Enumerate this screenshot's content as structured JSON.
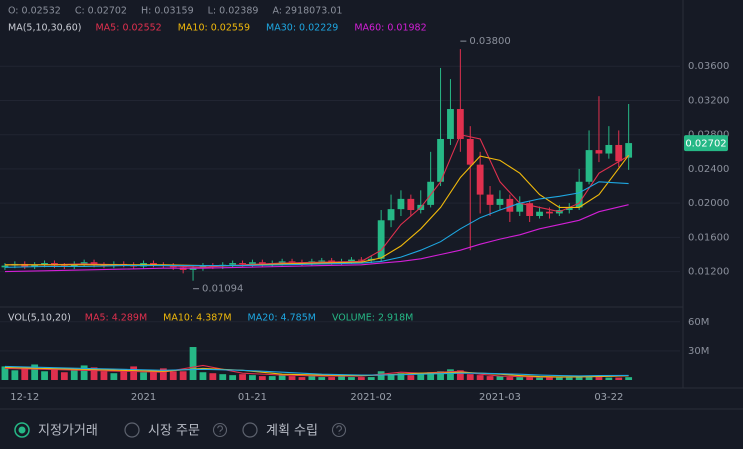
{
  "header": {
    "ohlc": [
      "O: 0.02532",
      "C: 0.02702",
      "H: 0.03159",
      "L: 0.02389",
      "A: 2918073.01"
    ]
  },
  "chart_data": [
    {
      "type": "candlestick",
      "legend_title": "MA(5,10,30,60)",
      "categories": [
        null,
        null,
        "12-12",
        null,
        null,
        null,
        null,
        null,
        null,
        null,
        null,
        null,
        null,
        null,
        "2021",
        null,
        null,
        null,
        null,
        null,
        null,
        null,
        null,
        null,
        null,
        "01-21",
        null,
        null,
        null,
        null,
        null,
        null,
        null,
        null,
        null,
        null,
        null,
        "2021-02",
        null,
        null,
        null,
        null,
        null,
        null,
        null,
        null,
        null,
        null,
        null,
        null,
        "2021-03",
        null,
        null,
        null,
        null,
        null,
        null,
        null,
        null,
        null,
        null,
        "03-22",
        null,
        null
      ],
      "open": [
        0.0125,
        0.0127,
        0.0129,
        0.0126,
        0.0128,
        0.013,
        0.0127,
        0.0126,
        0.0129,
        0.0131,
        0.0128,
        0.0127,
        0.0129,
        0.0128,
        0.0126,
        0.013,
        0.0128,
        0.0127,
        0.0125,
        0.0122,
        0.0124,
        0.0127,
        0.0126,
        0.0128,
        0.013,
        0.0129,
        0.0131,
        0.0129,
        0.013,
        0.0132,
        0.0131,
        0.013,
        0.0132,
        0.0133,
        0.0131,
        0.0132,
        0.0134,
        0.0133,
        0.0135,
        0.018,
        0.0193,
        0.0205,
        0.0192,
        0.0198,
        0.0225,
        0.0275,
        0.031,
        0.0275,
        0.0245,
        0.021,
        0.0198,
        0.0205,
        0.019,
        0.02,
        0.0185,
        0.019,
        0.0188,
        0.0192,
        0.0195,
        0.0225,
        0.0262,
        0.0258,
        0.0268,
        0.02532
      ],
      "high": [
        0.013,
        0.0132,
        0.0132,
        0.0131,
        0.0133,
        0.0133,
        0.013,
        0.0132,
        0.0134,
        0.0134,
        0.0131,
        0.0132,
        0.0132,
        0.0131,
        0.0133,
        0.0133,
        0.0131,
        0.013,
        0.0128,
        0.0127,
        0.013,
        0.013,
        0.0131,
        0.0133,
        0.0133,
        0.0134,
        0.0134,
        0.0133,
        0.0135,
        0.0135,
        0.0134,
        0.0135,
        0.0136,
        0.0136,
        0.0135,
        0.0137,
        0.0137,
        0.0138,
        0.0192,
        0.021,
        0.0215,
        0.021,
        0.0215,
        0.026,
        0.0358,
        0.0345,
        0.038,
        0.029,
        0.026,
        0.022,
        0.0215,
        0.021,
        0.0208,
        0.0203,
        0.0196,
        0.0195,
        0.0198,
        0.02,
        0.024,
        0.0285,
        0.0325,
        0.029,
        0.0285,
        0.03159
      ],
      "low": [
        0.0122,
        0.0124,
        0.0123,
        0.0123,
        0.0125,
        0.0124,
        0.0123,
        0.0123,
        0.0126,
        0.0125,
        0.0124,
        0.0124,
        0.0125,
        0.0123,
        0.0123,
        0.0125,
        0.0124,
        0.0122,
        0.0118,
        0.01094,
        0.0121,
        0.0123,
        0.0123,
        0.0125,
        0.0126,
        0.0126,
        0.0126,
        0.0126,
        0.0127,
        0.0128,
        0.0127,
        0.0127,
        0.0129,
        0.0128,
        0.0128,
        0.0129,
        0.013,
        0.013,
        0.0132,
        0.0172,
        0.0185,
        0.0185,
        0.0188,
        0.0195,
        0.022,
        0.0268,
        0.026,
        0.0145,
        0.0188,
        0.0185,
        0.0192,
        0.0178,
        0.0185,
        0.0178,
        0.0182,
        0.0182,
        0.0185,
        0.0188,
        0.0192,
        0.0222,
        0.0248,
        0.0252,
        0.0242,
        0.02389
      ],
      "close": [
        0.0127,
        0.0129,
        0.0126,
        0.0128,
        0.013,
        0.0127,
        0.0126,
        0.0129,
        0.0131,
        0.0128,
        0.0127,
        0.0129,
        0.0128,
        0.0126,
        0.013,
        0.0128,
        0.0127,
        0.0125,
        0.0122,
        0.0124,
        0.0127,
        0.0126,
        0.0128,
        0.013,
        0.0129,
        0.0131,
        0.0129,
        0.013,
        0.0132,
        0.0131,
        0.013,
        0.0132,
        0.0133,
        0.0131,
        0.0132,
        0.0134,
        0.0133,
        0.0135,
        0.018,
        0.0193,
        0.0205,
        0.0192,
        0.0198,
        0.0225,
        0.0275,
        0.031,
        0.0275,
        0.0245,
        0.021,
        0.0198,
        0.0205,
        0.019,
        0.02,
        0.0185,
        0.019,
        0.0188,
        0.0192,
        0.0195,
        0.0225,
        0.0262,
        0.0258,
        0.0268,
        0.0249,
        0.02702
      ],
      "up_color": "#26b886",
      "down_color": "#e0304e",
      "ylim": [
        0.0081,
        0.0393
      ],
      "yticks": [
        {
          "value": 0.012,
          "label": "0.01200"
        },
        {
          "value": 0.016,
          "label": "0.01600"
        },
        {
          "value": 0.02,
          "label": "0.02000"
        },
        {
          "value": 0.024,
          "label": "0.02400"
        },
        {
          "value": 0.028,
          "label": "0.02800"
        },
        {
          "value": 0.032,
          "label": "0.03200"
        },
        {
          "value": 0.036,
          "label": "0.03600"
        }
      ],
      "grid": true,
      "annotations": [
        {
          "index": 46,
          "text": "0.03800"
        },
        {
          "index": 19,
          "text": "0.01094"
        }
      ],
      "line_x": [
        0,
        4,
        8,
        12,
        16,
        20,
        24,
        28,
        32,
        36,
        38,
        40,
        42,
        44,
        46,
        48,
        50,
        52,
        54,
        56,
        58,
        60,
        63
      ],
      "lines": [
        {
          "name": "MA5: 0.02552",
          "color": "#e0304e",
          "values": [
            0.0128,
            0.0128,
            0.0129,
            0.0128,
            0.0127,
            0.0125,
            0.0128,
            0.013,
            0.0131,
            0.0132,
            0.0145,
            0.0175,
            0.0195,
            0.0225,
            0.028,
            0.0275,
            0.0225,
            0.02,
            0.0195,
            0.019,
            0.02,
            0.0235,
            0.02552
          ]
        },
        {
          "name": "MA10: 0.02559",
          "color": "#f0b90b",
          "values": [
            0.0128,
            0.0128,
            0.0128,
            0.0128,
            0.0128,
            0.0127,
            0.0127,
            0.0129,
            0.013,
            0.0131,
            0.0136,
            0.015,
            0.017,
            0.0195,
            0.023,
            0.0255,
            0.025,
            0.0235,
            0.021,
            0.0195,
            0.0195,
            0.021,
            0.02559
          ]
        },
        {
          "name": "MA30: 0.02229",
          "color": "#1ea7e1",
          "values": [
            0.0125,
            0.0126,
            0.0126,
            0.0127,
            0.0127,
            0.0127,
            0.0127,
            0.0128,
            0.0129,
            0.013,
            0.0132,
            0.0137,
            0.0145,
            0.0155,
            0.017,
            0.0183,
            0.0192,
            0.02,
            0.0205,
            0.0208,
            0.0212,
            0.0225,
            0.02229
          ]
        },
        {
          "name": "MA60: 0.01982",
          "color": "#d21fd6",
          "values": [
            0.012,
            0.0121,
            0.0122,
            0.0123,
            0.0124,
            0.0124,
            0.0125,
            0.0126,
            0.0127,
            0.0128,
            0.013,
            0.0132,
            0.0135,
            0.014,
            0.0145,
            0.0152,
            0.0158,
            0.0163,
            0.017,
            0.0175,
            0.018,
            0.019,
            0.01982
          ]
        }
      ]
    },
    {
      "type": "volume",
      "legend_title": "VOL(5,10,20)",
      "volume_label": "VOLUME: 2.918M",
      "volume_color": "#26b886",
      "values": [
        14000000,
        10000000,
        13000000,
        16000000,
        9000000,
        12000000,
        8000000,
        11000000,
        15000000,
        13000000,
        9000000,
        7000000,
        11000000,
        14000000,
        8000000,
        10000000,
        12000000,
        9000000,
        9000000,
        34000000,
        8000000,
        7000000,
        6000000,
        5000000,
        6000000,
        5000000,
        4000000,
        4000000,
        5000000,
        4000000,
        3000000,
        4000000,
        3000000,
        3000000,
        4000000,
        3000000,
        3000000,
        3000000,
        9000000,
        6000000,
        7000000,
        5000000,
        6000000,
        8000000,
        9000000,
        11000000,
        10000000,
        6000000,
        5000000,
        4000000,
        4000000,
        3000000,
        3000000,
        3000000,
        2500000,
        3000000,
        2500000,
        2500000,
        4000000,
        3500000,
        3000000,
        2500000,
        2500000,
        2918000
      ],
      "ylim": [
        0,
        67000000
      ],
      "yticks": [
        {
          "value": 30000000,
          "label": "30M"
        },
        {
          "value": 60000000,
          "label": "60M"
        }
      ],
      "line_x": [
        0,
        4,
        8,
        12,
        16,
        20,
        24,
        28,
        32,
        36,
        38,
        40,
        42,
        44,
        46,
        48,
        50,
        52,
        54,
        56,
        58,
        60,
        63
      ],
      "lines": [
        {
          "name": "MA5: 4.289M",
          "color": "#e0304e",
          "values": [
            12000000,
            11000000,
            10000000,
            9000000,
            8000000,
            15000000,
            7000000,
            5000000,
            4000000,
            4000000,
            6000000,
            8000000,
            7000000,
            8000000,
            9000000,
            6000000,
            4000000,
            3500000,
            3000000,
            3000000,
            3200000,
            3500000,
            4289000
          ]
        },
        {
          "name": "MA10: 4.387M",
          "color": "#f0b90b",
          "values": [
            13000000,
            12000000,
            11000000,
            10000000,
            9000000,
            12000000,
            10000000,
            6000000,
            5000000,
            4500000,
            5000000,
            6000000,
            7000000,
            7000000,
            8000000,
            7000000,
            6000000,
            4500000,
            3500000,
            3200000,
            3300000,
            3600000,
            4387000
          ]
        },
        {
          "name": "MA20: 4.785M",
          "color": "#1ea7e1",
          "values": [
            14000000,
            13000000,
            12000000,
            11000000,
            10000000,
            11000000,
            10000000,
            8000000,
            6000000,
            5000000,
            5000000,
            5500000,
            6000000,
            6500000,
            7000000,
            7000000,
            6500000,
            6000000,
            5000000,
            4500000,
            4200000,
            4500000,
            4785000
          ]
        }
      ]
    }
  ],
  "order_types": [
    "지정가거래",
    "시장 주문",
    "계획 수립"
  ]
}
